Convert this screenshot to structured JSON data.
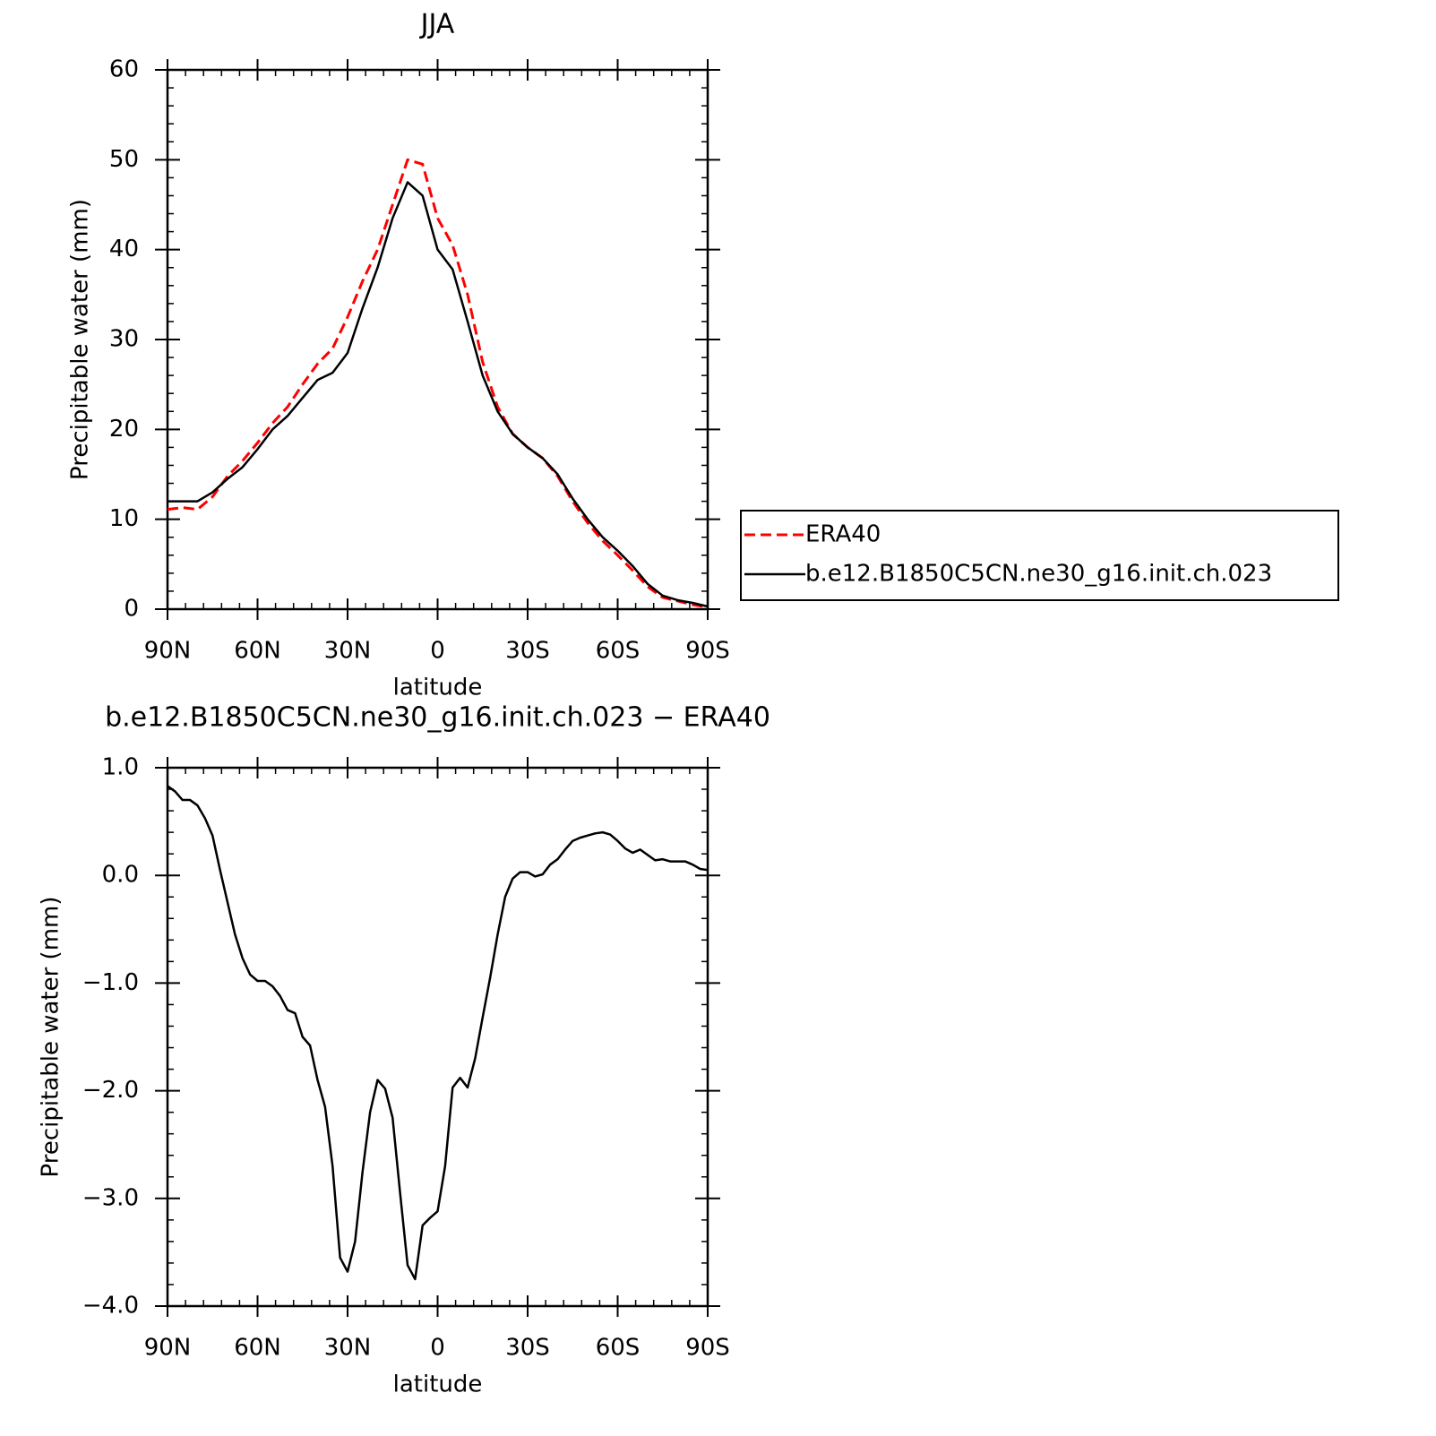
{
  "chart_data": [
    {
      "type": "line",
      "title": "JJA",
      "x_label": "latitude",
      "y_label": "Precipitable water (mm)",
      "xlim": [
        90,
        -90
      ],
      "xticks": [
        {
          "value": 90,
          "label": "90N"
        },
        {
          "value": 60,
          "label": "60N"
        },
        {
          "value": 30,
          "label": "30N"
        },
        0,
        {
          "value": -30,
          "label": "30S"
        },
        {
          "value": -60,
          "label": "60S"
        },
        {
          "value": -90,
          "label": "90S"
        }
      ],
      "ylim": [
        0,
        60
      ],
      "yticks": [
        0,
        10,
        20,
        30,
        40,
        50,
        60
      ],
      "legend": "outside-right",
      "x": [
        90,
        85,
        80,
        75,
        70,
        65,
        60,
        55,
        50,
        45,
        40,
        35,
        30,
        25,
        20,
        15,
        10,
        5,
        0,
        -5,
        -10,
        -15,
        -20,
        -25,
        -30,
        -35,
        -40,
        -45,
        -50,
        -55,
        -60,
        -65,
        -70,
        -75,
        -80,
        -85,
        -90
      ],
      "series": [
        {
          "name": "ERA40",
          "color": "#ff0000",
          "line_style": "dashed",
          "values": [
            11.1,
            11.3,
            11.1,
            12.5,
            14.8,
            16.5,
            18.5,
            20.7,
            22.5,
            25.0,
            27.3,
            29.0,
            32.5,
            36.5,
            40.0,
            45.0,
            50.0,
            49.5,
            43.5,
            40.5,
            35.0,
            27.5,
            22.5,
            19.5,
            18.0,
            16.8,
            14.8,
            12.0,
            9.6,
            7.6,
            6.0,
            4.3,
            2.5,
            1.3,
            0.9,
            0.5,
            0.2
          ]
        },
        {
          "name": "b.e12.B1850C5CN.ne30_g16.init.ch.023",
          "color": "#000000",
          "line_style": "solid",
          "values": [
            12.0,
            12.0,
            12.0,
            13.0,
            14.5,
            15.8,
            17.8,
            20.0,
            21.5,
            23.5,
            25.5,
            26.3,
            28.5,
            33.5,
            38.0,
            43.5,
            47.5,
            46.0,
            40.0,
            37.8,
            32.0,
            26.0,
            22.0,
            19.5,
            18.0,
            16.8,
            15.0,
            12.3,
            10.0,
            8.0,
            6.5,
            4.8,
            2.8,
            1.5,
            1.0,
            0.7,
            0.3
          ]
        }
      ]
    },
    {
      "type": "line",
      "title": "b.e12.B1850C5CN.ne30_g16.init.ch.023 − ERA40",
      "x_label": "latitude",
      "y_label": "Precipitable water (mm)",
      "xlim": [
        90,
        -90
      ],
      "xticks": [
        {
          "value": 90,
          "label": "90N"
        },
        {
          "value": 60,
          "label": "60N"
        },
        {
          "value": 30,
          "label": "30N"
        },
        0,
        {
          "value": -30,
          "label": "30S"
        },
        {
          "value": -60,
          "label": "60S"
        },
        {
          "value": -90,
          "label": "90S"
        }
      ],
      "ylim": [
        -4,
        1
      ],
      "yticks": [
        {
          "value": -4,
          "label": "−4.0"
        },
        {
          "value": -3,
          "label": "−3.0"
        },
        {
          "value": -2,
          "label": "−2.0"
        },
        {
          "value": -1,
          "label": "−1.0"
        },
        {
          "value": 0,
          "label": "0.0"
        },
        {
          "value": 1,
          "label": "1.0"
        }
      ],
      "x": [
        90,
        87.5,
        85,
        82.5,
        80,
        77.5,
        75,
        72.5,
        70,
        67.5,
        65,
        62.5,
        60,
        57.5,
        55,
        52.5,
        50,
        47.5,
        45,
        42.5,
        40,
        37.5,
        35,
        32.5,
        30,
        27.5,
        25,
        22.5,
        20,
        17.5,
        15,
        12.5,
        10,
        7.5,
        5,
        2.5,
        0,
        -2.5,
        -5,
        -7.5,
        -10,
        -12.5,
        -15,
        -17.5,
        -20,
        -22.5,
        -25,
        -27.5,
        -30,
        -32.5,
        -35,
        -37.5,
        -40,
        -42.5,
        -45,
        -47.5,
        -50,
        -52.5,
        -55,
        -57.5,
        -60,
        -62.5,
        -65,
        -67.5,
        -70,
        -72.5,
        -75,
        -77.5,
        -80,
        -82.5,
        -85,
        -87.5,
        -90
      ],
      "series": [
        {
          "color": "#000000",
          "line_style": "solid",
          "values": [
            0.83,
            0.78,
            0.7,
            0.7,
            0.65,
            0.53,
            0.37,
            0.05,
            -0.25,
            -0.55,
            -0.77,
            -0.92,
            -0.98,
            -0.98,
            -1.03,
            -1.12,
            -1.25,
            -1.28,
            -1.5,
            -1.58,
            -1.9,
            -2.15,
            -2.7,
            -3.55,
            -3.68,
            -3.4,
            -2.75,
            -2.2,
            -1.9,
            -1.98,
            -2.25,
            -2.95,
            -3.62,
            -3.75,
            -3.25,
            -3.18,
            -3.12,
            -2.7,
            -1.97,
            -1.88,
            -1.97,
            -1.7,
            -1.32,
            -0.95,
            -0.55,
            -0.2,
            -0.03,
            0.03,
            0.03,
            -0.01,
            0.01,
            0.1,
            0.15,
            0.24,
            0.32,
            0.35,
            0.37,
            0.39,
            0.4,
            0.38,
            0.32,
            0.25,
            0.21,
            0.24,
            0.19,
            0.14,
            0.15,
            0.13,
            0.13,
            0.13,
            0.1,
            0.06,
            0.05
          ]
        }
      ]
    }
  ]
}
